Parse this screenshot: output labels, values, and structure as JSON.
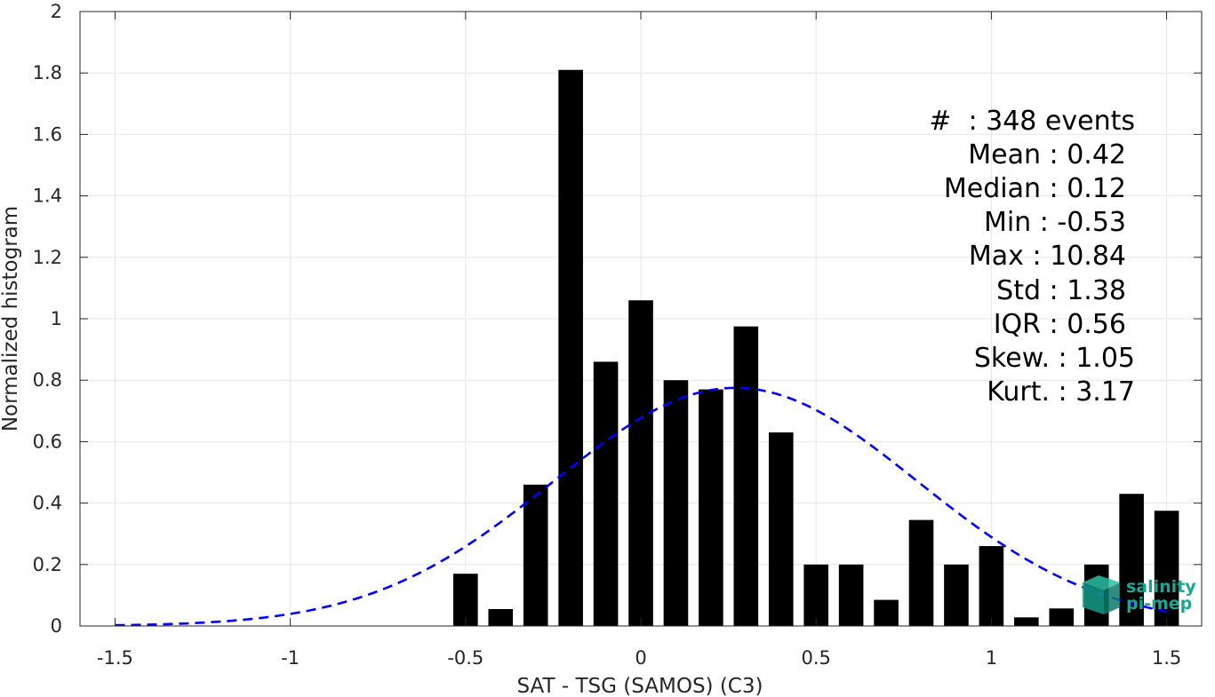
{
  "chart_data": {
    "type": "bar",
    "xlabel": "SAT - TSG (SAMOS) (C3)",
    "ylabel": "Normalized histogram",
    "xlim": [
      -1.6,
      1.6
    ],
    "ylim": [
      0,
      2
    ],
    "xticks": [
      -1.5,
      -1,
      -0.5,
      0,
      0.5,
      1,
      1.5
    ],
    "xtick_labels": [
      "-1.5",
      "-1",
      "-0.5",
      "0",
      "0.5",
      "1",
      "1.5"
    ],
    "yticks": [
      0,
      0.2,
      0.4,
      0.6,
      0.8,
      1,
      1.2,
      1.4,
      1.6,
      1.8,
      2
    ],
    "ytick_labels": [
      "0",
      "0.2",
      "0.4",
      "0.6",
      "0.8",
      "1",
      "1.2",
      "1.4",
      "1.6",
      "1.8",
      "2"
    ],
    "grid": true,
    "bar_color": "#000000",
    "bar_width": 0.07,
    "bars": [
      {
        "x": -0.5,
        "value": 0.17
      },
      {
        "x": -0.4,
        "value": 0.055
      },
      {
        "x": -0.3,
        "value": 0.46
      },
      {
        "x": -0.2,
        "value": 1.81
      },
      {
        "x": -0.1,
        "value": 0.86
      },
      {
        "x": 0.0,
        "value": 1.06
      },
      {
        "x": 0.1,
        "value": 0.8
      },
      {
        "x": 0.2,
        "value": 0.77
      },
      {
        "x": 0.3,
        "value": 0.975
      },
      {
        "x": 0.4,
        "value": 0.63
      },
      {
        "x": 0.5,
        "value": 0.2
      },
      {
        "x": 0.6,
        "value": 0.2
      },
      {
        "x": 0.7,
        "value": 0.085
      },
      {
        "x": 0.8,
        "value": 0.345
      },
      {
        "x": 0.9,
        "value": 0.2
      },
      {
        "x": 1.0,
        "value": 0.26
      },
      {
        "x": 1.1,
        "value": 0.028
      },
      {
        "x": 1.2,
        "value": 0.057
      },
      {
        "x": 1.3,
        "value": 0.2
      },
      {
        "x": 1.4,
        "value": 0.43
      },
      {
        "x": 1.5,
        "value": 0.375
      }
    ],
    "fit_curve": {
      "style": "dashed",
      "color": "#0000ff",
      "mean": 0.27,
      "peak": 0.775,
      "sigma": 0.52,
      "x_range": [
        -1.5,
        1.5
      ]
    },
    "annotations": [
      "#  : 348 events",
      "Mean : 0.42",
      "Median : 0.12",
      "Min : -0.53",
      "Max : 10.84",
      "Std : 1.38",
      "IQR : 0.56",
      "Skew. : 1.05",
      "Kurt. : 3.17"
    ],
    "logo": {
      "line1": "salinity",
      "line2": "pi-mep",
      "color": "#1aa693"
    }
  }
}
